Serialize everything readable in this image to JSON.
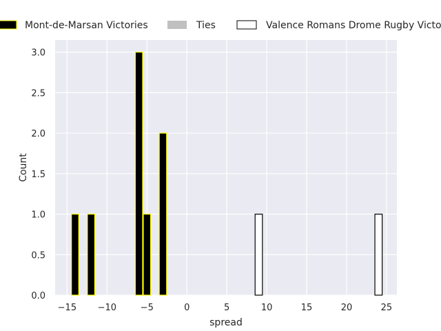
{
  "chart_data": {
    "type": "bar",
    "xlabel": "spread",
    "ylabel": "Count",
    "xlim": [
      -16.5,
      26.3
    ],
    "ylim": [
      0,
      3.15
    ],
    "xticks": [
      -15,
      -10,
      -5,
      0,
      5,
      10,
      15,
      20,
      25
    ],
    "yticks": [
      0.0,
      0.5,
      1.0,
      1.5,
      2.0,
      2.5,
      3.0
    ],
    "xtick_labels": [
      "−15",
      "−10",
      "−5",
      "0",
      "5",
      "10",
      "15",
      "20",
      "25"
    ],
    "ytick_labels": [
      "0.0",
      "0.5",
      "1.0",
      "1.5",
      "2.0",
      "2.5",
      "3.0"
    ],
    "grid": true,
    "legend_position": "top",
    "bin_width": 1.0,
    "series": [
      {
        "name": "Mont-de-Marsan Victories",
        "fill": "#000000",
        "edge": "#ffff00",
        "bars": [
          {
            "x": -14,
            "count": 1
          },
          {
            "x": -12,
            "count": 1
          },
          {
            "x": -6,
            "count": 3
          },
          {
            "x": -5,
            "count": 1
          },
          {
            "x": -3,
            "count": 2
          }
        ]
      },
      {
        "name": "Ties",
        "fill": "#c0c0c0",
        "edge": "#c0c0c0",
        "bars": []
      },
      {
        "name": "Valence Romans Drome Rugby Victories",
        "fill": "#ffffff",
        "edge": "#000000",
        "bars": [
          {
            "x": 9,
            "count": 1
          },
          {
            "x": 24,
            "count": 1
          }
        ]
      }
    ]
  }
}
